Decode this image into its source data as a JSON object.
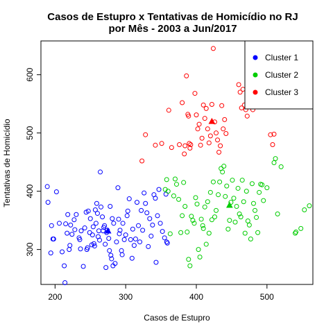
{
  "chart_data": {
    "type": "scatter",
    "title": [
      "Casos de Estupro x Tentativas de Homicídio no RJ",
      "por Mês - 2003 a Jun/2017"
    ],
    "xlabel": "Casos de Estupro",
    "ylabel": "Tentativas de Homicídio",
    "xlim": [
      180,
      565
    ],
    "ylim": [
      240,
      658
    ],
    "xticks": [
      200,
      300,
      400,
      500
    ],
    "yticks": [
      300,
      400,
      500,
      600
    ],
    "grid": false,
    "legend_position": "top-right",
    "series": [
      {
        "name": "Cluster 1",
        "color": "#0000ff",
        "marker": "circle-open",
        "centroid": [
          275,
          332
        ],
        "points": [
          [
            189,
            408
          ],
          [
            190,
            381
          ],
          [
            194,
            294
          ],
          [
            195,
            341
          ],
          [
            197,
            318
          ],
          [
            198,
            318
          ],
          [
            202,
            399
          ],
          [
            206,
            345
          ],
          [
            210,
            296
          ],
          [
            213,
            272
          ],
          [
            214,
            243
          ],
          [
            215,
            344
          ],
          [
            217,
            328
          ],
          [
            218,
            360
          ],
          [
            220,
            300
          ],
          [
            221,
            307
          ],
          [
            222,
            342
          ],
          [
            224,
            326
          ],
          [
            227,
            351
          ],
          [
            228,
            334
          ],
          [
            230,
            360
          ],
          [
            234,
            320
          ],
          [
            235,
            317
          ],
          [
            236,
            301
          ],
          [
            237,
            332
          ],
          [
            240,
            271
          ],
          [
            242,
            337
          ],
          [
            244,
            364
          ],
          [
            245,
            300
          ],
          [
            246,
            303
          ],
          [
            247,
            366
          ],
          [
            249,
            329
          ],
          [
            250,
            353
          ],
          [
            252,
            308
          ],
          [
            253,
            325
          ],
          [
            254,
            339
          ],
          [
            255,
            310
          ],
          [
            256,
            306
          ],
          [
            257,
            368
          ],
          [
            258,
            345
          ],
          [
            259,
            379
          ],
          [
            260,
            362
          ],
          [
            261,
            322
          ],
          [
            262,
            332
          ],
          [
            263,
            316
          ],
          [
            264,
            433
          ],
          [
            265,
            373
          ],
          [
            267,
            356
          ],
          [
            268,
            332
          ],
          [
            269,
            338
          ],
          [
            270,
            341
          ],
          [
            271,
            309
          ],
          [
            272,
            269
          ],
          [
            273,
            329
          ],
          [
            274,
            333
          ],
          [
            276,
            319
          ],
          [
            277,
            298
          ],
          [
            278,
            374
          ],
          [
            279,
            290
          ],
          [
            280,
            284
          ],
          [
            281,
            353
          ],
          [
            282,
            272
          ],
          [
            283,
            345
          ],
          [
            285,
            276
          ],
          [
            287,
            313
          ],
          [
            289,
            406
          ],
          [
            290,
            352
          ],
          [
            291,
            327
          ],
          [
            292,
            333
          ],
          [
            294,
            298
          ],
          [
            295,
            291
          ],
          [
            296,
            345
          ],
          [
            298,
            317
          ],
          [
            300,
            325
          ],
          [
            302,
            358
          ],
          [
            303,
            366
          ],
          [
            305,
            387
          ],
          [
            307,
            317
          ],
          [
            309,
            285
          ],
          [
            310,
            335
          ],
          [
            312,
            307
          ],
          [
            314,
            318
          ],
          [
            316,
            381
          ],
          [
            318,
            341
          ],
          [
            320,
            313
          ],
          [
            322,
            367
          ],
          [
            324,
            333
          ],
          [
            326,
            397
          ],
          [
            328,
            379
          ],
          [
            330,
            363
          ],
          [
            332,
            305
          ],
          [
            334,
            353
          ],
          [
            336,
            323
          ],
          [
            338,
            342
          ],
          [
            340,
            394
          ],
          [
            342,
            388
          ],
          [
            343,
            278
          ],
          [
            345,
            358
          ],
          [
            347,
            403
          ],
          [
            349,
            345
          ],
          [
            352,
            331
          ],
          [
            355,
            320
          ],
          [
            357,
            395
          ],
          [
            358,
            313
          ],
          [
            359,
            311
          ]
        ]
      },
      {
        "name": "Cluster 2",
        "color": "#00cd00",
        "marker": "circle-open",
        "centroid": [
          447,
          376
        ],
        "points": [
          [
            356,
            403
          ],
          [
            358,
            420
          ],
          [
            360,
            400
          ],
          [
            363,
            327
          ],
          [
            368,
            392
          ],
          [
            370,
            421
          ],
          [
            372,
            412
          ],
          [
            375,
            386
          ],
          [
            378,
            329
          ],
          [
            380,
            358
          ],
          [
            382,
            415
          ],
          [
            384,
            374
          ],
          [
            387,
            330
          ],
          [
            389,
            283
          ],
          [
            391,
            272
          ],
          [
            393,
            357
          ],
          [
            395,
            350
          ],
          [
            397,
            345
          ],
          [
            399,
            389
          ],
          [
            401,
            378
          ],
          [
            403,
            300
          ],
          [
            405,
            287
          ],
          [
            407,
            352
          ],
          [
            409,
            341
          ],
          [
            410,
            336
          ],
          [
            412,
            373
          ],
          [
            414,
            309
          ],
          [
            416,
            382
          ],
          [
            418,
            328
          ],
          [
            420,
            398
          ],
          [
            422,
            351
          ],
          [
            424,
            416
          ],
          [
            426,
            356
          ],
          [
            428,
            367
          ],
          [
            431,
            394
          ],
          [
            433,
            416
          ],
          [
            435,
            439
          ],
          [
            437,
            433
          ],
          [
            439,
            443
          ],
          [
            441,
            391
          ],
          [
            443,
            409
          ],
          [
            445,
            335
          ],
          [
            447,
            350
          ],
          [
            449,
            381
          ],
          [
            451,
            419
          ],
          [
            453,
            388
          ],
          [
            455,
            347
          ],
          [
            457,
            374
          ],
          [
            459,
            405
          ],
          [
            461,
            361
          ],
          [
            463,
            356
          ],
          [
            465,
            419
          ],
          [
            467,
            382
          ],
          [
            469,
            328
          ],
          [
            471,
            400
          ],
          [
            473,
            349
          ],
          [
            475,
            342
          ],
          [
            477,
            318
          ],
          [
            479,
            413
          ],
          [
            481,
            379
          ],
          [
            483,
            367
          ],
          [
            485,
            355
          ],
          [
            487,
            329
          ],
          [
            489,
            398
          ],
          [
            491,
            412
          ],
          [
            493,
            411
          ],
          [
            495,
            384
          ],
          [
            500,
            406
          ],
          [
            510,
            449
          ],
          [
            512,
            456
          ],
          [
            515,
            361
          ],
          [
            520,
            442
          ],
          [
            540,
            328
          ],
          [
            541,
            330
          ],
          [
            548,
            336
          ],
          [
            553,
            368
          ],
          [
            560,
            375
          ]
        ]
      },
      {
        "name": "Cluster 3",
        "color": "#ff0000",
        "marker": "circle-open",
        "centroid": [
          422,
          520
        ],
        "points": [
          [
            323,
            452
          ],
          [
            328,
            497
          ],
          [
            342,
            479
          ],
          [
            351,
            482
          ],
          [
            361,
            539
          ],
          [
            365,
            475
          ],
          [
            376,
            480
          ],
          [
            380,
            552
          ],
          [
            383,
            464
          ],
          [
            384,
            478
          ],
          [
            386,
            598
          ],
          [
            388,
            532
          ],
          [
            389,
            529
          ],
          [
            390,
            482
          ],
          [
            391,
            474
          ],
          [
            392,
            480
          ],
          [
            398,
            568
          ],
          [
            400,
            531
          ],
          [
            402,
            507
          ],
          [
            404,
            515
          ],
          [
            406,
            479
          ],
          [
            408,
            491
          ],
          [
            410,
            548
          ],
          [
            412,
            525
          ],
          [
            414,
            542
          ],
          [
            416,
            507
          ],
          [
            418,
            483
          ],
          [
            420,
            495
          ],
          [
            422,
            549
          ],
          [
            424,
            645
          ],
          [
            426,
            519
          ],
          [
            428,
            500
          ],
          [
            430,
            488
          ],
          [
            432,
            467
          ],
          [
            434,
            478
          ],
          [
            436,
            547
          ],
          [
            438,
            507
          ],
          [
            440,
            523
          ],
          [
            442,
            499
          ],
          [
            460,
            583
          ],
          [
            462,
            570
          ],
          [
            464,
            543
          ],
          [
            466,
            575
          ],
          [
            468,
            548
          ],
          [
            470,
            540
          ],
          [
            472,
            529
          ],
          [
            478,
            608
          ],
          [
            480,
            540
          ],
          [
            485,
            591
          ],
          [
            495,
            564
          ],
          [
            505,
            497
          ],
          [
            508,
            480
          ],
          [
            510,
            498
          ]
        ]
      }
    ]
  }
}
